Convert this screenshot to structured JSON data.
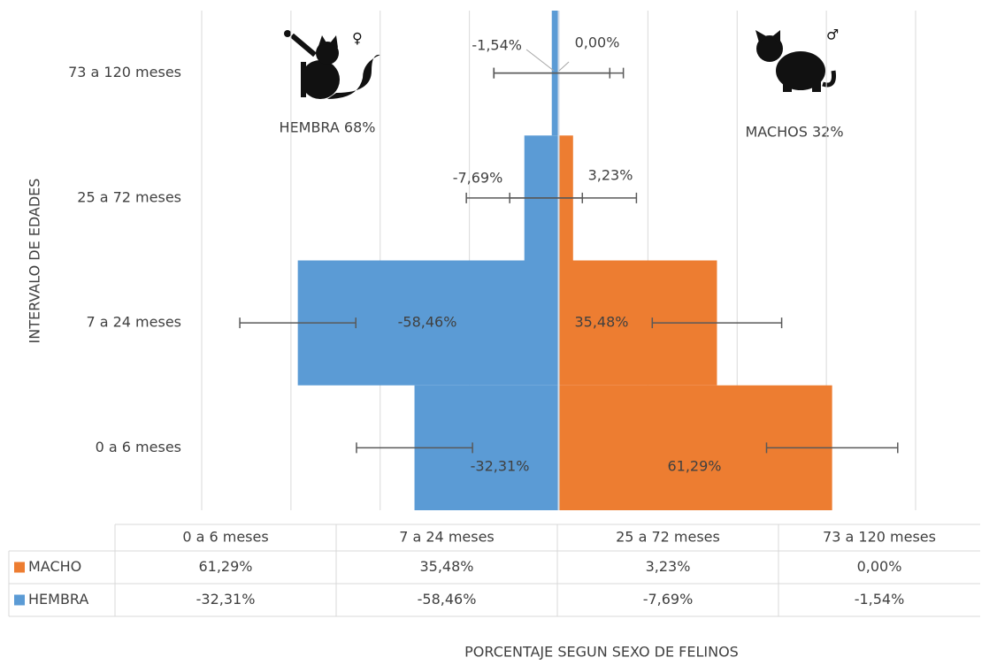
{
  "chart_data": {
    "type": "pyramid",
    "y_axis_label": "INTERVALO DE EDADES",
    "x_axis_label": "PORCENTAJE SEGUN SEXO DE FELINOS",
    "annotations": [
      "HEMBRA 68%",
      "MACHOS 32%"
    ],
    "categories": [
      "0 a 6 meses",
      "7 a 24 meses",
      "25 a 72 meses",
      "73 a 120 meses"
    ],
    "series": [
      {
        "name": "MACHO",
        "color": "#ed7d31",
        "values": [
          61.29,
          35.48,
          3.23,
          0.0
        ],
        "value_labels": [
          "61,29%",
          "35,48%",
          "3,23%",
          "0,00%"
        ],
        "errors": [
          14.7,
          14.5,
          14.2,
          14.5
        ]
      },
      {
        "name": "HEMBRA",
        "color": "#5b9bd5",
        "values": [
          -32.31,
          -58.46,
          -7.69,
          -1.54
        ],
        "value_labels": [
          "-32,31%",
          "-58,46%",
          "-7,69%",
          "-1,54%"
        ],
        "errors": [
          13,
          13,
          13,
          13
        ]
      }
    ],
    "xlim": [
      -80,
      80
    ],
    "xticks": [
      -80,
      -60,
      -40,
      -20,
      0,
      20,
      40,
      60,
      80
    ],
    "grid": true
  }
}
